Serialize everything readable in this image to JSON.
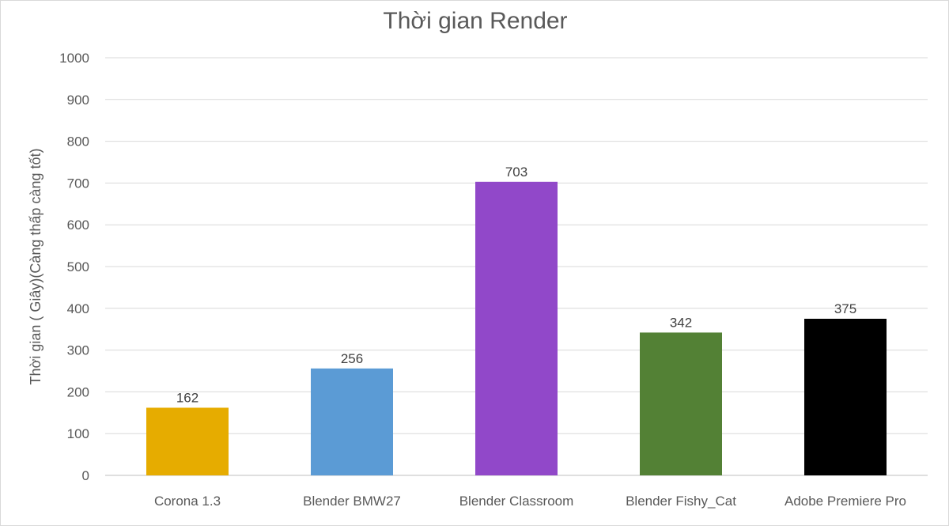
{
  "chart_data": {
    "type": "bar",
    "title": "Thời gian Render",
    "ylabel": "Thời gian ( Giây)(Càng thấp càng tốt)",
    "xlabel": "",
    "categories": [
      "Corona 1.3",
      "Blender BMW27",
      "Blender Classroom",
      "Blender Fishy_Cat",
      "Adobe Premiere Pro"
    ],
    "values": [
      162,
      256,
      703,
      342,
      375
    ],
    "value_labels": [
      "162",
      "256",
      "703",
      "342",
      "375"
    ],
    "colors": [
      "#e6ac00",
      "#5b9bd5",
      "#9148c9",
      "#538135",
      "#000000"
    ],
    "ylim": [
      0,
      1000
    ],
    "yticks": [
      0,
      100,
      200,
      300,
      400,
      500,
      600,
      700,
      800,
      900,
      1000
    ],
    "ytick_labels": [
      "0",
      "100",
      "200",
      "300",
      "400",
      "500",
      "600",
      "700",
      "800",
      "900",
      "1000"
    ],
    "grid": true,
    "legend": "none"
  }
}
